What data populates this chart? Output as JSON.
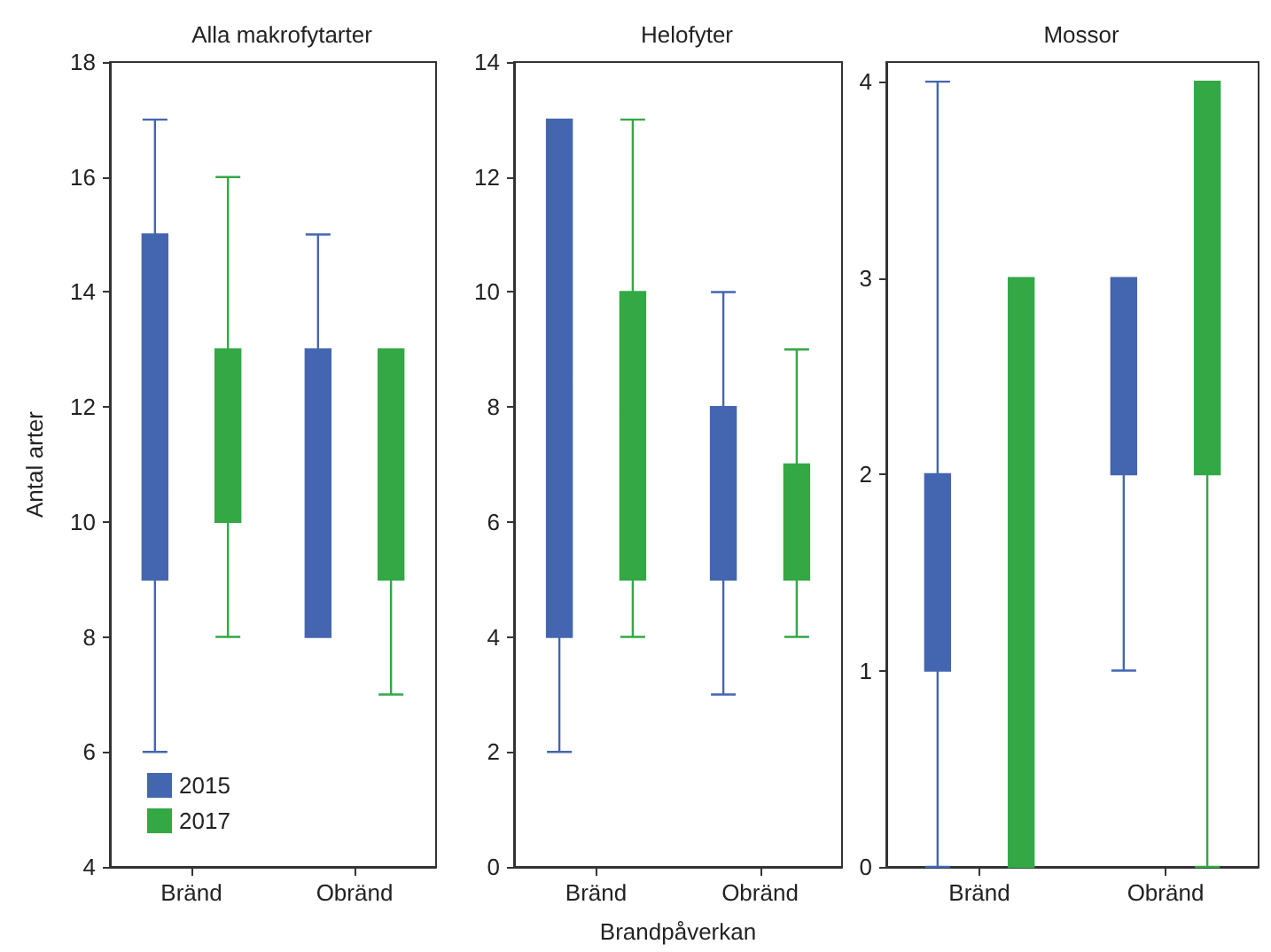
{
  "chart_data": [
    {
      "type": "box",
      "title": "Alla makrofytarter",
      "ylabel": "Antal arter",
      "categories": [
        "Bränd",
        "Obränd"
      ],
      "ylim": [
        4,
        18
      ],
      "yticks": [
        4,
        6,
        8,
        10,
        12,
        14,
        16,
        18
      ],
      "grid": false,
      "legend": "bottom left",
      "series": [
        {
          "name": "2015",
          "color": "#4466b0",
          "boxes": [
            {
              "low": 6,
              "q1": 9,
              "median": 10.5,
              "q3": 15,
              "high": 17
            },
            {
              "low": 8,
              "q1": 8,
              "median": 10,
              "q3": 13,
              "high": 15
            }
          ]
        },
        {
          "name": "2017",
          "color": "#33a845",
          "boxes": [
            {
              "low": 8,
              "q1": 10,
              "median": 11,
              "q3": 13,
              "high": 16
            },
            {
              "low": 7,
              "q1": 9,
              "median": 11,
              "q3": 13,
              "high": 13
            }
          ]
        }
      ]
    },
    {
      "type": "box",
      "title": "Helofyter",
      "xlabel": "Brandpåverkan",
      "categories": [
        "Bränd",
        "Obränd"
      ],
      "ylim": [
        0,
        14
      ],
      "yticks": [
        0,
        2,
        4,
        6,
        8,
        10,
        12,
        14
      ],
      "grid": false,
      "series": [
        {
          "color": "#4466b0",
          "boxes": [
            {
              "low": 2,
              "q1": 4,
              "median": 8.5,
              "q3": 13,
              "high": 13
            },
            {
              "low": 3,
              "q1": 5,
              "median": 8,
              "q3": 8,
              "high": 10
            }
          ]
        },
        {
          "color": "#33a845",
          "boxes": [
            {
              "low": 4,
              "q1": 5,
              "median": 8,
              "q3": 10,
              "high": 13
            },
            {
              "low": 4,
              "q1": 5,
              "median": 6,
              "q3": 7,
              "high": 9
            }
          ]
        }
      ]
    },
    {
      "type": "box",
      "title": "Mossor",
      "categories": [
        "Bränd",
        "Obränd"
      ],
      "ylim": [
        0,
        4.1
      ],
      "yticks": [
        0,
        1,
        2,
        3,
        4
      ],
      "grid": false,
      "series": [
        {
          "color": "#4466b0",
          "boxes": [
            {
              "low": 0,
              "q1": 1,
              "median": 2,
              "q3": 2,
              "high": 4
            },
            {
              "low": 1,
              "q1": 2,
              "median": 3,
              "q3": 3,
              "high": 3
            }
          ]
        },
        {
          "color": "#33a845",
          "boxes": [
            {
              "low": 0,
              "q1": 0,
              "median": 2,
              "q3": 3,
              "high": 3
            },
            {
              "low": 0,
              "q1": 2,
              "median": 4,
              "q3": 4,
              "high": 4
            }
          ]
        }
      ]
    }
  ]
}
